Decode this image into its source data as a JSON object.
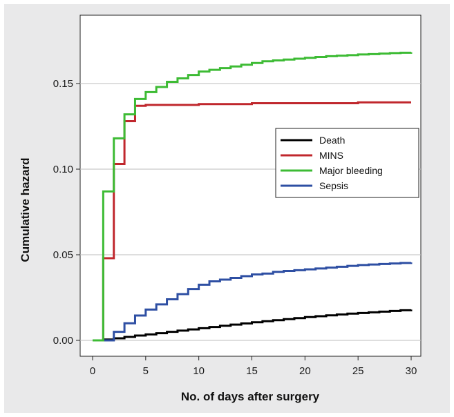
{
  "chart_data": {
    "type": "line",
    "title": "",
    "xlabel": "No. of days after surgery",
    "ylabel": "Cumulative hazard",
    "xlim": [
      0,
      30
    ],
    "ylim": [
      0,
      0.17
    ],
    "xticks": [
      0,
      5,
      10,
      15,
      20,
      25,
      30
    ],
    "yticks": [
      0.0,
      0.05,
      0.1,
      0.15
    ],
    "ytick_labels": [
      "0.00",
      "0.05",
      "0.10",
      "0.15"
    ],
    "grid": "horizontal",
    "legend_position": "right-center",
    "step": true,
    "series": [
      {
        "name": "Death",
        "color": "#000000",
        "x": [
          0,
          1,
          2,
          3,
          4,
          5,
          6,
          7,
          8,
          9,
          10,
          11,
          12,
          13,
          14,
          15,
          16,
          17,
          18,
          19,
          20,
          21,
          22,
          23,
          24,
          25,
          26,
          27,
          28,
          29,
          30
        ],
        "y": [
          0.0,
          0.0005,
          0.0012,
          0.002,
          0.0028,
          0.0035,
          0.0042,
          0.005,
          0.0057,
          0.0064,
          0.0071,
          0.0078,
          0.0085,
          0.0092,
          0.0099,
          0.0106,
          0.0112,
          0.0118,
          0.0124,
          0.013,
          0.0136,
          0.0141,
          0.0146,
          0.0151,
          0.0156,
          0.016,
          0.0164,
          0.0168,
          0.0172,
          0.0176,
          0.018
        ]
      },
      {
        "name": "MINS",
        "color": "#c0272d",
        "x": [
          0,
          1,
          2,
          3,
          4,
          5,
          10,
          15,
          20,
          25,
          30
        ],
        "y": [
          0.0,
          0.048,
          0.103,
          0.128,
          0.137,
          0.1375,
          0.138,
          0.1385,
          0.1385,
          0.139,
          0.139
        ]
      },
      {
        "name": "Major bleeding",
        "color": "#3dbb34",
        "x": [
          0,
          1,
          2,
          3,
          4,
          5,
          6,
          7,
          8,
          9,
          10,
          11,
          12,
          13,
          14,
          15,
          16,
          17,
          18,
          19,
          20,
          21,
          22,
          23,
          24,
          25,
          26,
          27,
          28,
          29,
          30
        ],
        "y": [
          0.0,
          0.087,
          0.118,
          0.132,
          0.141,
          0.145,
          0.148,
          0.151,
          0.153,
          0.155,
          0.157,
          0.158,
          0.159,
          0.16,
          0.161,
          0.162,
          0.163,
          0.1635,
          0.164,
          0.1645,
          0.165,
          0.1655,
          0.166,
          0.1663,
          0.1666,
          0.167,
          0.1672,
          0.1675,
          0.1678,
          0.168,
          0.1683
        ]
      },
      {
        "name": "Sepsis",
        "color": "#2e4fa3",
        "x": [
          0,
          1,
          2,
          3,
          4,
          5,
          6,
          7,
          8,
          9,
          10,
          11,
          12,
          13,
          14,
          15,
          16,
          17,
          18,
          19,
          20,
          21,
          22,
          23,
          24,
          25,
          26,
          27,
          28,
          29,
          30
        ],
        "y": [
          0.0,
          0.0,
          0.005,
          0.01,
          0.0145,
          0.018,
          0.021,
          0.024,
          0.027,
          0.03,
          0.0325,
          0.0345,
          0.0355,
          0.0365,
          0.0375,
          0.0385,
          0.039,
          0.04,
          0.0405,
          0.041,
          0.0415,
          0.042,
          0.0425,
          0.043,
          0.0435,
          0.044,
          0.0443,
          0.0446,
          0.0449,
          0.0452,
          0.0455
        ]
      }
    ]
  }
}
